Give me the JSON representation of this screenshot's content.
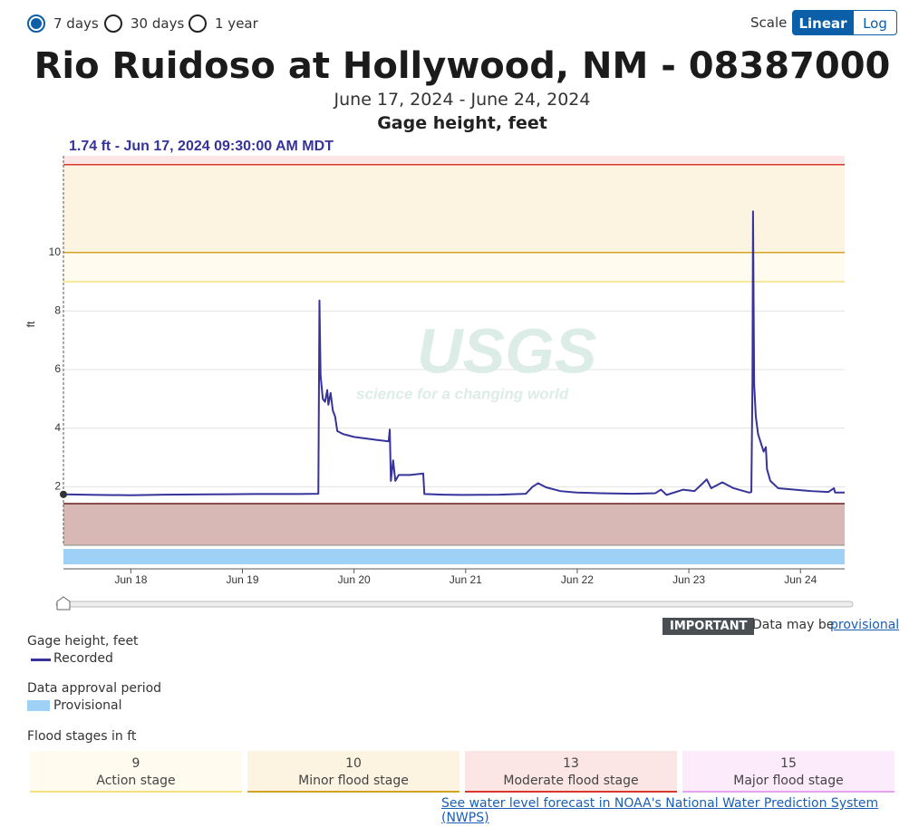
{
  "controls": {
    "periods": [
      "7 days",
      "30 days",
      "1 year"
    ],
    "selected_period": 0,
    "scale_label": "Scale",
    "scale_options": [
      "Linear",
      "Log"
    ]
  },
  "chart_data": {
    "type": "line",
    "title": "Rio Ruidoso at Hollywood, NM - 08387000",
    "subtitle": "June 17, 2024 - June 24, 2024",
    "y_title": "Gage height, feet",
    "readout": "1.74 ft - Jun 17, 2024 09:30:00 AM MDT",
    "ylabel": "ft",
    "watermark": [
      "USGS",
      "science for a changing world"
    ],
    "x": [
      0.396,
      0.7,
      1.0,
      1.3,
      1.7,
      2.1,
      2.5,
      2.68,
      2.69,
      2.7,
      2.72,
      2.74,
      2.76,
      2.77,
      2.79,
      2.81,
      2.83,
      2.85,
      2.9,
      3.0,
      3.1,
      3.2,
      3.31,
      3.32,
      3.33,
      3.35,
      3.37,
      3.4,
      3.5,
      3.62,
      3.63,
      3.8,
      4.0,
      4.3,
      4.54,
      4.6,
      4.65,
      4.72,
      4.85,
      5.0,
      5.2,
      5.5,
      5.7,
      5.75,
      5.8,
      5.95,
      6.05,
      6.12,
      6.16,
      6.2,
      6.3,
      6.4,
      6.54,
      6.56,
      6.57,
      6.575,
      6.585,
      6.6,
      6.62,
      6.67,
      6.69,
      6.7,
      6.73,
      6.8,
      6.95,
      7.1,
      7.25,
      7.3,
      7.31,
      7.396
    ],
    "series": [
      {
        "name": "Recorded",
        "color": "#36339a",
        "values": [
          1.74,
          1.72,
          1.71,
          1.73,
          1.74,
          1.75,
          1.75,
          1.76,
          8.36,
          5.8,
          5.0,
          4.9,
          5.3,
          4.8,
          5.2,
          4.6,
          4.4,
          3.9,
          3.8,
          3.7,
          3.65,
          3.6,
          3.55,
          3.95,
          2.2,
          2.9,
          2.2,
          2.4,
          2.4,
          2.45,
          1.75,
          1.73,
          1.72,
          1.73,
          1.76,
          2.0,
          2.12,
          1.98,
          1.85,
          1.8,
          1.78,
          1.76,
          1.78,
          1.9,
          1.72,
          1.9,
          1.85,
          2.1,
          2.25,
          1.95,
          2.15,
          1.95,
          1.8,
          1.82,
          5.6,
          11.4,
          5.5,
          4.4,
          3.8,
          3.2,
          3.35,
          2.6,
          2.2,
          1.95,
          1.9,
          1.85,
          1.82,
          1.95,
          1.8,
          1.8
        ]
      }
    ],
    "xlim": [
      0.396,
      7.396
    ],
    "xticks": [
      {
        "value": 1,
        "label": "Jun 18"
      },
      {
        "value": 2,
        "label": "Jun 19"
      },
      {
        "value": 3,
        "label": "Jun 20"
      },
      {
        "value": 4,
        "label": "Jun 21"
      },
      {
        "value": 5,
        "label": "Jun 22"
      },
      {
        "value": 6,
        "label": "Jun 23"
      },
      {
        "value": 7,
        "label": "Jun 24"
      }
    ],
    "ylim": [
      0,
      13.3
    ],
    "yticks": [
      2,
      4,
      6,
      8,
      10
    ],
    "grid": true,
    "log_scale": false
  },
  "notice": {
    "badge": "IMPORTANT",
    "text": "Data may be",
    "link": "provisional"
  },
  "legend": {
    "gage_title": "Gage height, feet",
    "approval_title": "Data approval period",
    "approval_entry": "Provisional",
    "approval_color": "#9fd0f5",
    "flood_title": "Flood stages in ft"
  },
  "flood_stages": [
    {
      "value": 9,
      "label": "Action stage",
      "color": "#fffbee",
      "line": "#f3e27b"
    },
    {
      "value": 10,
      "label": "Minor flood stage",
      "color": "#fcf4e1",
      "line": "#d4a324"
    },
    {
      "value": 13,
      "label": "Moderate flood stage",
      "color": "#fbe6e5",
      "line": "#d9382c"
    },
    {
      "value": 15,
      "label": "Major flood stage",
      "color": "#fcebfb",
      "line": "#e5a4ef"
    }
  ],
  "footer_link": "See water level forecast in NOAA's National Water Prediction System (NWPS)"
}
